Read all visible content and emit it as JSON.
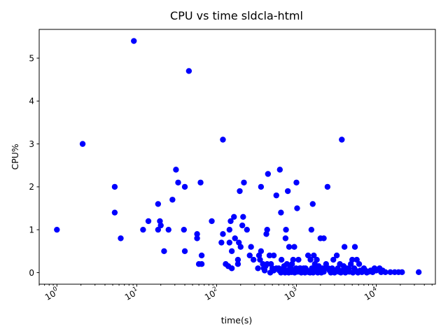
{
  "chart_data": {
    "type": "scatter",
    "title": "CPU vs time sldcla-html",
    "xlabel": "time(s)",
    "ylabel": "CPU%",
    "xscale": "log",
    "xlim": [
      0.6,
      55000
    ],
    "ylim": [
      -0.27,
      5.67
    ],
    "grid": false,
    "point_color": "#0000ff",
    "x_ticks": [
      {
        "base": "10",
        "exp": "0",
        "value": 1
      },
      {
        "base": "10",
        "exp": "1",
        "value": 10
      },
      {
        "base": "10",
        "exp": "2",
        "value": 100
      },
      {
        "base": "10",
        "exp": "3",
        "value": 1000
      },
      {
        "base": "10",
        "exp": "4",
        "value": 10000
      }
    ],
    "y_ticks": [
      {
        "label": "0",
        "value": 0
      },
      {
        "label": "1",
        "value": 1
      },
      {
        "label": "2",
        "value": 2
      },
      {
        "label": "3",
        "value": 3
      },
      {
        "label": "4",
        "value": 4
      },
      {
        "label": "5",
        "value": 5
      }
    ],
    "points": [
      [
        1,
        1
      ],
      [
        2.1,
        3
      ],
      [
        5.3,
        2
      ],
      [
        5.3,
        1.4
      ],
      [
        6.3,
        0.8
      ],
      [
        9.2,
        5.4
      ],
      [
        12,
        1
      ],
      [
        14,
        1.2
      ],
      [
        18.5,
        1.6
      ],
      [
        18.5,
        1
      ],
      [
        19.5,
        1.2
      ],
      [
        20,
        1.1
      ],
      [
        22,
        0.5
      ],
      [
        25,
        1
      ],
      [
        28,
        1.7
      ],
      [
        31,
        2.4
      ],
      [
        33,
        2.1
      ],
      [
        39,
        1
      ],
      [
        40,
        2
      ],
      [
        40,
        0.5
      ],
      [
        45,
        4.7
      ],
      [
        57,
        0.9
      ],
      [
        57,
        0.8
      ],
      [
        60,
        0.2
      ],
      [
        63,
        2.1
      ],
      [
        65,
        0.4
      ],
      [
        65,
        0.2
      ],
      [
        87,
        1.2
      ],
      [
        115,
        0.7
      ],
      [
        120,
        3.1
      ],
      [
        120,
        0.9
      ],
      [
        130,
        0.2
      ],
      [
        140,
        0.15
      ],
      [
        145,
        0.7
      ],
      [
        145,
        1
      ],
      [
        150,
        1.2
      ],
      [
        155,
        0.5
      ],
      [
        155,
        0.1
      ],
      [
        165,
        1.3
      ],
      [
        170,
        0.8
      ],
      [
        190,
        0.7
      ],
      [
        185,
        0.2
      ],
      [
        185,
        0.3
      ],
      [
        195,
        1.9
      ],
      [
        200,
        0.6
      ],
      [
        210,
        1.1
      ],
      [
        215,
        1.3
      ],
      [
        220,
        2.1
      ],
      [
        240,
        1
      ],
      [
        260,
        0.4
      ],
      [
        270,
        0.6
      ],
      [
        290,
        0.3
      ],
      [
        330,
        0.1
      ],
      [
        340,
        0.4
      ],
      [
        350,
        0.3
      ],
      [
        360,
        2
      ],
      [
        380,
        0.2
      ],
      [
        390,
        0.1
      ],
      [
        410,
        0.15
      ],
      [
        420,
        0.9
      ],
      [
        430,
        1
      ],
      [
        440,
        2.3
      ],
      [
        460,
        0.4
      ],
      [
        480,
        0.2
      ],
      [
        500,
        0.1
      ],
      [
        520,
        0.4
      ],
      [
        560,
        1.8
      ],
      [
        600,
        0.1
      ],
      [
        620,
        2.4
      ],
      [
        640,
        1.4
      ],
      [
        650,
        0.3
      ],
      [
        690,
        0.1
      ],
      [
        730,
        0.8
      ],
      [
        740,
        1
      ],
      [
        760,
        0.2
      ],
      [
        780,
        1.9
      ],
      [
        810,
        0.6
      ],
      [
        850,
        0.1
      ],
      [
        880,
        0.2
      ],
      [
        910,
        0.3
      ],
      [
        940,
        0.6
      ],
      [
        1000,
        2.1
      ],
      [
        1020,
        1.5
      ],
      [
        1060,
        0.3
      ],
      [
        1120,
        0.1
      ],
      [
        1200,
        0.05
      ],
      [
        1300,
        0.1
      ],
      [
        1400,
        0.4
      ],
      [
        1500,
        0.3
      ],
      [
        1540,
        1
      ],
      [
        1600,
        1.6
      ],
      [
        1650,
        0.4
      ],
      [
        1700,
        0.2
      ],
      [
        1800,
        0.3
      ],
      [
        1900,
        0.15
      ],
      [
        2000,
        0.8
      ],
      [
        2200,
        0.8
      ],
      [
        2300,
        0.1
      ],
      [
        2450,
        2
      ],
      [
        2600,
        0.05
      ],
      [
        2900,
        0.3
      ],
      [
        3200,
        0.4
      ],
      [
        3500,
        0.2
      ],
      [
        3700,
        3.1
      ],
      [
        4000,
        0.6
      ],
      [
        4200,
        0.1
      ],
      [
        4500,
        0.1
      ],
      [
        5000,
        0.3
      ],
      [
        5400,
        0.6
      ],
      [
        5700,
        0.3
      ],
      [
        6100,
        0.2
      ],
      [
        7000,
        0.1
      ],
      [
        8500,
        0.05
      ],
      [
        9500,
        0.1
      ],
      [
        11000,
        0.1
      ],
      [
        13000,
        0.01
      ],
      [
        15000,
        0.01
      ],
      [
        17000,
        0.01
      ],
      [
        19000,
        0.01
      ],
      [
        21000,
        0.01
      ],
      [
        34000,
        0.01
      ],
      [
        360,
        0.5
      ],
      [
        400,
        0.05
      ],
      [
        430,
        0.2
      ],
      [
        470,
        0
      ],
      [
        520,
        0.05
      ],
      [
        560,
        0.1
      ],
      [
        610,
        0.05
      ],
      [
        640,
        0
      ],
      [
        670,
        0.02
      ],
      [
        700,
        0.15
      ],
      [
        720,
        0
      ],
      [
        760,
        0.05
      ],
      [
        800,
        0
      ],
      [
        830,
        0.1
      ],
      [
        870,
        0.01
      ],
      [
        900,
        0.05
      ],
      [
        950,
        0
      ],
      [
        990,
        0.1
      ],
      [
        1040,
        0.02
      ],
      [
        1100,
        0.1
      ],
      [
        1150,
        0
      ],
      [
        1230,
        0.1
      ],
      [
        1280,
        0
      ],
      [
        1350,
        0.05
      ],
      [
        1420,
        0.01
      ],
      [
        1480,
        0
      ],
      [
        1560,
        0.1
      ],
      [
        1620,
        0
      ],
      [
        1700,
        0.05
      ],
      [
        1760,
        0.1
      ],
      [
        1850,
        0
      ],
      [
        1950,
        0.05
      ],
      [
        2050,
        0
      ],
      [
        2100,
        0.1
      ],
      [
        2200,
        0.02
      ],
      [
        2350,
        0.2
      ],
      [
        2500,
        0.1
      ],
      [
        2700,
        0
      ],
      [
        2800,
        0.1
      ],
      [
        3000,
        0
      ],
      [
        3100,
        0.05
      ],
      [
        3300,
        0.1
      ],
      [
        3400,
        0.02
      ],
      [
        3600,
        0
      ],
      [
        3800,
        0.05
      ],
      [
        3900,
        0.15
      ],
      [
        4100,
        0
      ],
      [
        4300,
        0.05
      ],
      [
        4600,
        0.02
      ],
      [
        4800,
        0.2
      ],
      [
        5100,
        0
      ],
      [
        5300,
        0.1
      ],
      [
        5500,
        0.05
      ],
      [
        5900,
        0
      ],
      [
        6300,
        0.05
      ],
      [
        6600,
        0.01
      ],
      [
        7300,
        0.05
      ],
      [
        7600,
        0
      ],
      [
        8000,
        0.02
      ],
      [
        9000,
        0.01
      ],
      [
        10000,
        0.05
      ],
      [
        11500,
        0.01
      ],
      [
        12000,
        0.05
      ]
    ]
  }
}
